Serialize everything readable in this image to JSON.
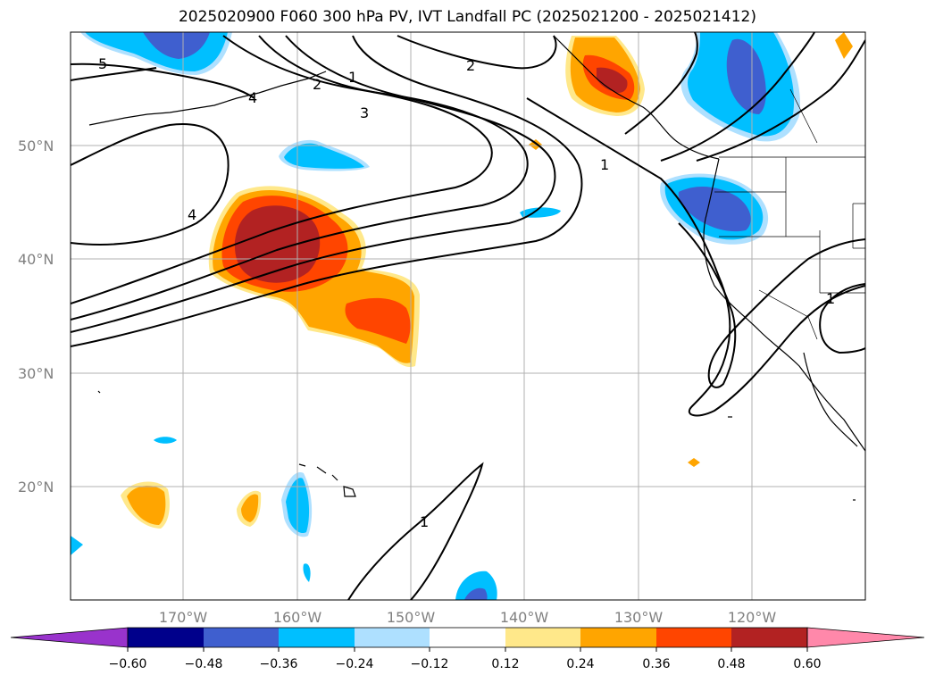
{
  "title": "2025020900 F060 300 hPa PV, IVT Landfall PC (2025021200 - 2025021412)",
  "lat_labels": [
    "50°N",
    "40°N",
    "30°N",
    "20°N"
  ],
  "lon_labels": [
    "170°W",
    "160°W",
    "150°W",
    "140°W",
    "130°W",
    "120°W"
  ],
  "contour_labels": [
    "5",
    "4",
    "2",
    "1",
    "3",
    "4",
    "2",
    "1",
    "1",
    "1"
  ],
  "colorbar": {
    "ticks": [
      "−0.60",
      "−0.48",
      "−0.36",
      "−0.24",
      "−0.12",
      "0.12",
      "0.24",
      "0.36",
      "0.48",
      "0.60"
    ],
    "colors": [
      "#9933cc",
      "#00008b",
      "#3f5fcf",
      "#00bfff",
      "#aee0ff",
      "#ffffff",
      "#ffe88a",
      "#ffa500",
      "#ff4500",
      "#b22222",
      "#ff88aa"
    ]
  },
  "colors": {
    "pos_high": "#b22222",
    "pos_mid": "#ff4500",
    "pos_low": "#ffa500",
    "pos_edge": "#ffe88a",
    "neg_low": "#aee0ff",
    "neg_mid": "#00bfff",
    "neg_high": "#3f5fcf",
    "grid": "#b0b0b0"
  }
}
